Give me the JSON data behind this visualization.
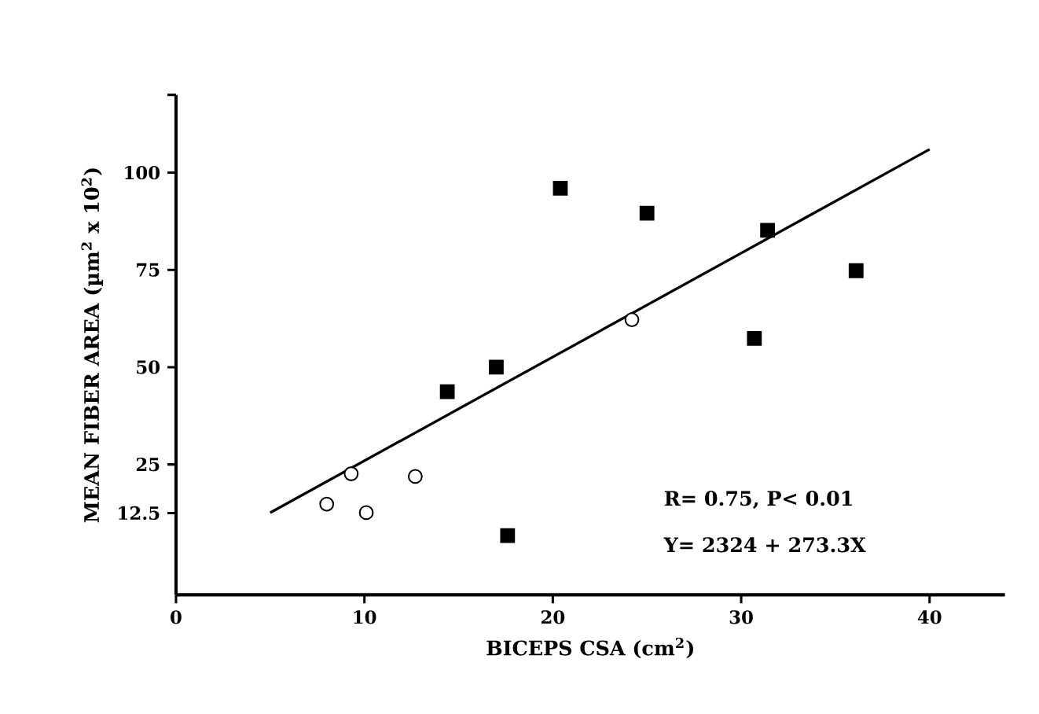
{
  "chart_data": {
    "type": "scatter",
    "xlabel": "BICEPS CSA (cm$^{2}$)",
    "ylabel": "MEAN FIBER AREA (µm$^{2}$ x 10$^{2}$)",
    "xlim": [
      0,
      44
    ],
    "ylim": [
      -8.5,
      120
    ],
    "xticks": [
      0,
      10,
      20,
      30,
      40
    ],
    "yticks": [
      12.5,
      25,
      50,
      75,
      100,
      {
        "value": 120,
        "label": null
      }
    ],
    "grid": false,
    "series": [
      {
        "marker": "square",
        "color": "#000000",
        "x": [
          14.4,
          17.0,
          17.6,
          20.4,
          25.0,
          31.4,
          30.7,
          36.1
        ],
        "values": [
          43.7,
          50,
          6.7,
          96,
          89.6,
          85.2,
          57.4,
          74.8
        ]
      },
      {
        "marker": "circle",
        "color": "#ffffff",
        "x": [
          8.0,
          9.3,
          10.1,
          12.7,
          24.2
        ],
        "values": [
          14.8,
          22.6,
          12.6,
          21.9,
          62.2
        ]
      },
      {
        "type": "line",
        "marker": "none",
        "line_style": "solid",
        "color": "#000000",
        "x": [
          5,
          40
        ],
        "values": [
          12.6,
          106
        ]
      }
    ],
    "annotations": [
      "R= 0.75, P< 0.01",
      "Y= 2324 + 273.3X"
    ]
  }
}
